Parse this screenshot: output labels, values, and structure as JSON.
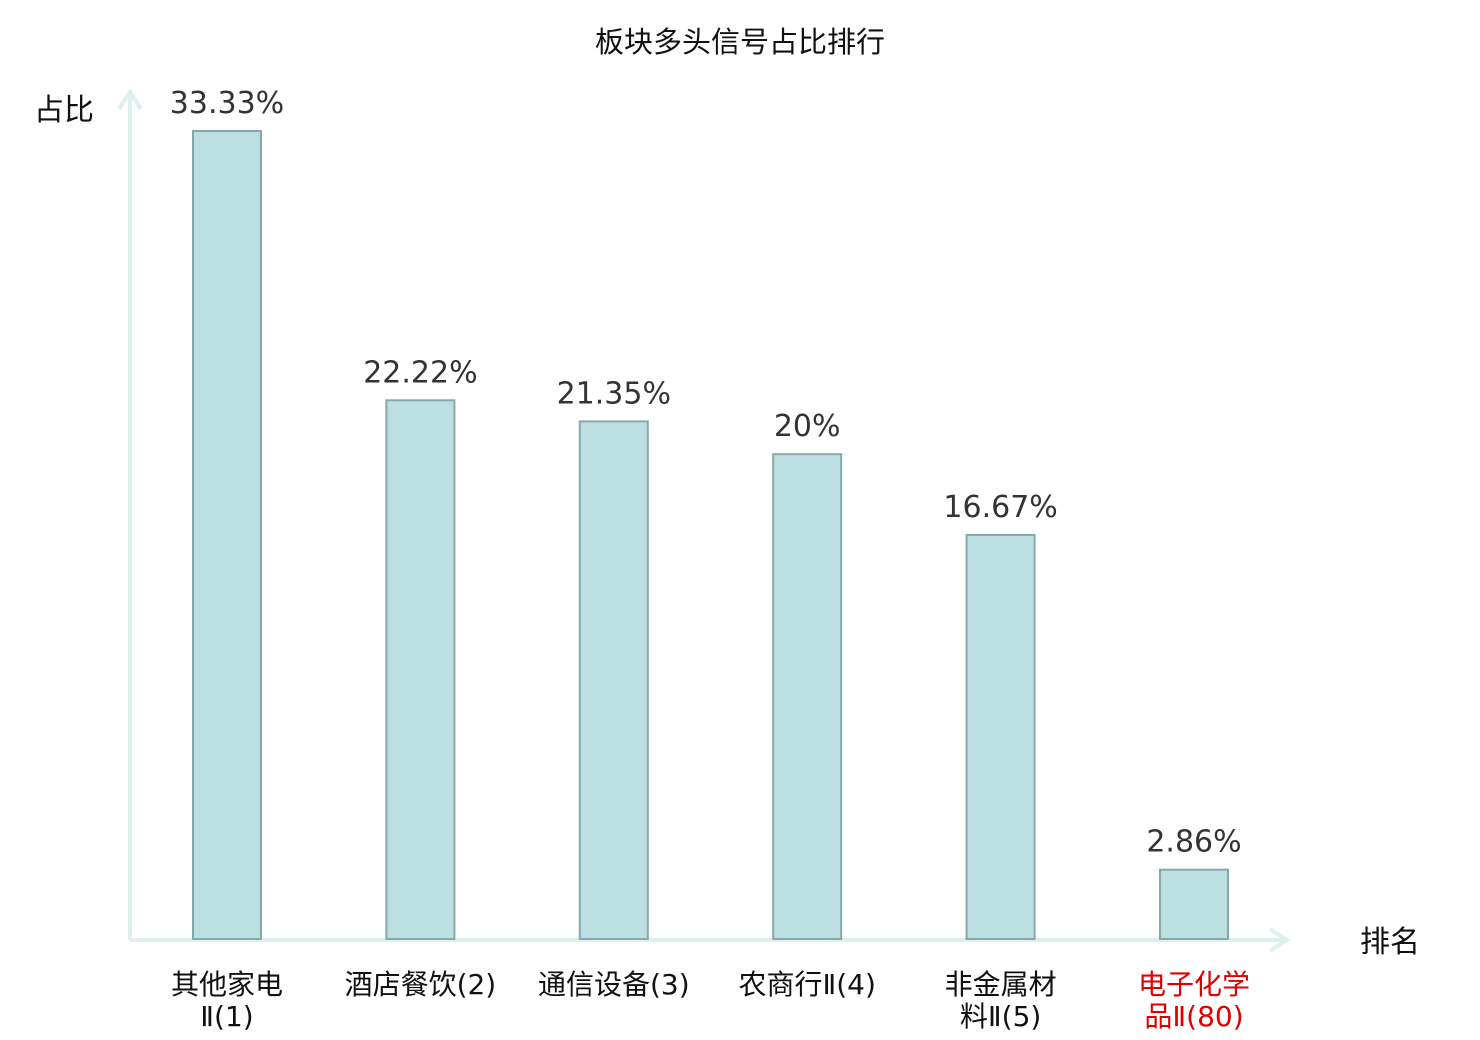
{
  "chart_data": {
    "type": "bar",
    "title": "板块多头信号占比排行",
    "ylabel": "占比",
    "xlabel": "排名",
    "categories": [
      [
        "其他家电",
        "Ⅱ(1)"
      ],
      [
        "酒店餐饮(2)"
      ],
      [
        "通信设备(3)"
      ],
      [
        "农商行Ⅱ(4)"
      ],
      [
        "非金属材",
        "料Ⅱ(5)"
      ],
      [
        "电子化学",
        "品Ⅱ(80)"
      ]
    ],
    "values": [
      33.33,
      22.22,
      21.35,
      20,
      16.67,
      2.86
    ],
    "value_labels": [
      "33.33%",
      "22.22%",
      "21.35%",
      "20%",
      "16.67%",
      "2.86%"
    ],
    "highlight_index": 5,
    "ylim": [
      0,
      33.33
    ],
    "grid": false,
    "colors": {
      "bar_fill": "#bce0e2",
      "bar_stroke": "#86a8aa",
      "axis": "#ddf0ed",
      "text": "#111111",
      "highlight_text": "#e00000"
    }
  }
}
